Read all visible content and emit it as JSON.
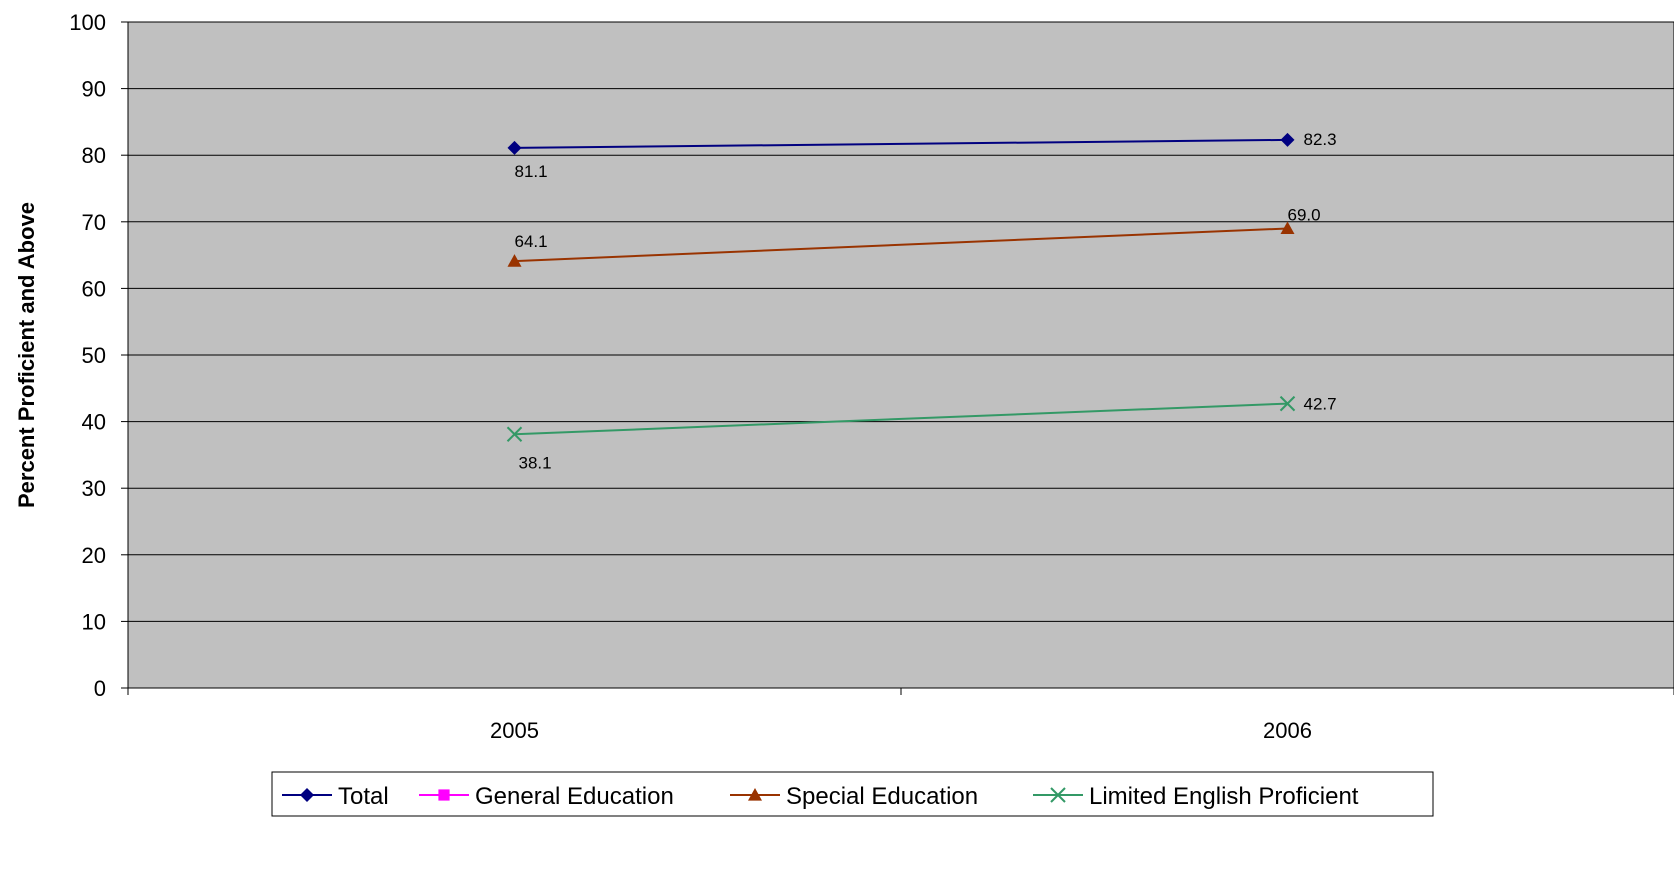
{
  "chart_data": {
    "type": "line",
    "categories": [
      "2005",
      "2006"
    ],
    "ylabel": "Percent Proficient and Above",
    "ylim": [
      0,
      100
    ],
    "y_ticks": [
      0,
      10,
      20,
      30,
      40,
      50,
      60,
      70,
      80,
      90,
      100
    ],
    "grid": true,
    "legend_position": "bottom",
    "plot_background": "#c0c0c0",
    "series": [
      {
        "name": "Total",
        "values": [
          81.1,
          82.3
        ],
        "labels": [
          "81.1",
          "82.3"
        ],
        "color": "#000080",
        "marker": "diamond"
      },
      {
        "name": "General Education",
        "values": [
          null,
          null
        ],
        "labels": [],
        "color": "#ff00ff",
        "marker": "square"
      },
      {
        "name": "Special Education",
        "values": [
          64.1,
          69.0
        ],
        "labels": [
          "64.1",
          "69.0"
        ],
        "color": "#993300",
        "marker": "triangle"
      },
      {
        "name": "Limited English Proficient",
        "values": [
          38.1,
          42.7
        ],
        "labels": [
          "38.1",
          "42.7"
        ],
        "color": "#339966",
        "marker": "x"
      }
    ]
  }
}
